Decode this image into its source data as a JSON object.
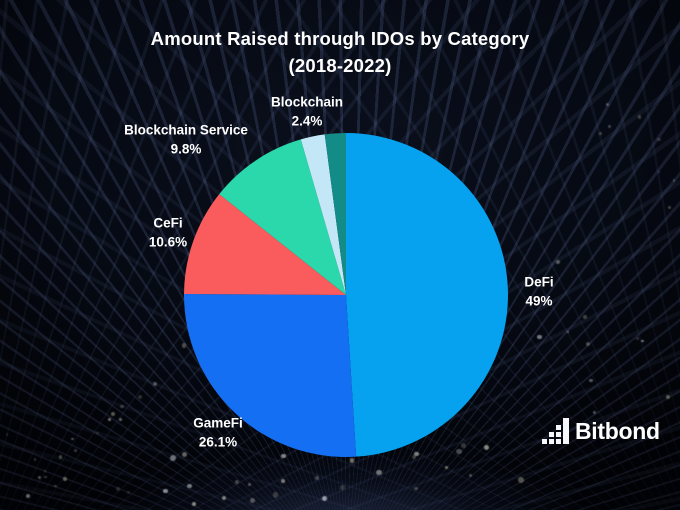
{
  "chart_data": {
    "type": "pie",
    "title": "Amount Raised through IDOs by Category",
    "subtitle": "(2018-2022)",
    "legend": "none",
    "labels_position": "outside",
    "start_angle_deg": 0,
    "direction": "clockwise",
    "text_color": "#FFFFFF",
    "slices": [
      {
        "label": "DeFi",
        "value": 49,
        "pct_label": "49%",
        "color": "#06A2F0"
      },
      {
        "label": "GameFi",
        "value": 26.1,
        "pct_label": "26.1%",
        "color": "#156FF2"
      },
      {
        "label": "CeFi",
        "value": 10.6,
        "pct_label": "10.6%",
        "color": "#FA5B5D"
      },
      {
        "label": "Blockchain Service",
        "value": 9.8,
        "pct_label": "9.8%",
        "color": "#2AD8AB"
      },
      {
        "label": "Blockchain",
        "value": 2.4,
        "pct_label": "2.4%",
        "color": "#C4E7F7"
      },
      {
        "label": "",
        "value": 2.1,
        "pct_label": "",
        "color": "#138C88",
        "unlabeled": true
      }
    ]
  },
  "branding": {
    "logo_text": "Bitbond"
  }
}
